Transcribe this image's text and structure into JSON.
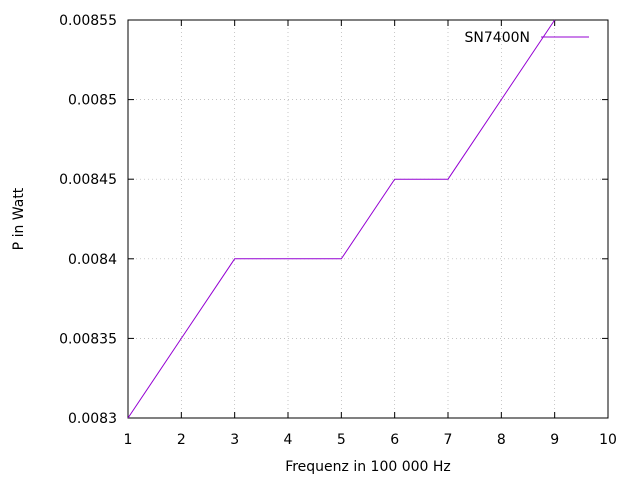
{
  "chart_data": {
    "type": "line",
    "title": "",
    "xlabel": "Frequenz in 100 000 Hz",
    "ylabel": "P in Watt",
    "xlim": [
      1,
      10
    ],
    "ylim": [
      0.0083,
      0.00855
    ],
    "grid": true,
    "legend_position": "top-right",
    "x_ticks": [
      "1",
      "2",
      "3",
      "4",
      "5",
      "6",
      "7",
      "8",
      "9",
      "10"
    ],
    "y_ticks": [
      "0.0083",
      "0.00835",
      "0.0084",
      "0.00845",
      "0.0085",
      "0.00855"
    ],
    "series": [
      {
        "name": "SN7400N",
        "color": "#9400d3",
        "x": [
          1,
          2,
          3,
          4,
          5,
          6,
          7,
          8,
          9
        ],
        "y": [
          0.0083,
          0.00835,
          0.0084,
          0.0084,
          0.0084,
          0.00845,
          0.00845,
          0.0085,
          0.00855
        ]
      }
    ]
  }
}
